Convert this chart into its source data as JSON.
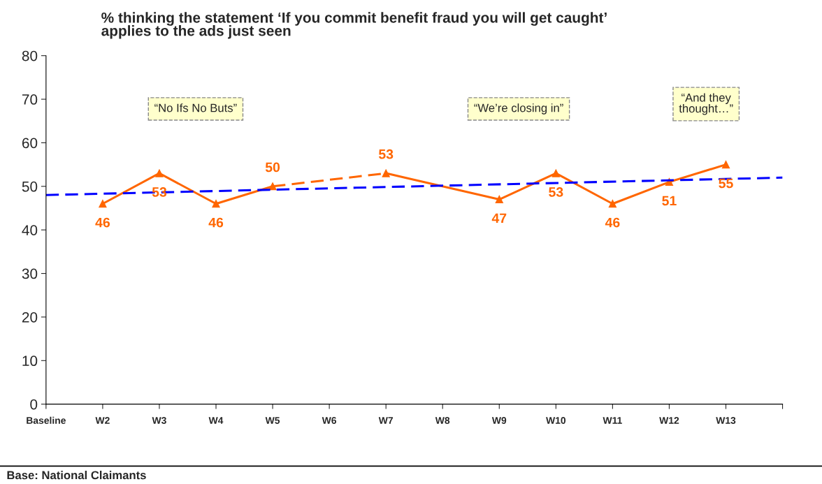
{
  "chart_data": {
    "type": "line",
    "title": "% thinking the statement ‘If you commit benefit fraud you will get caught’\napplies to the ads just seen",
    "categories": [
      "Baseline",
      "W2",
      "W3",
      "W4",
      "W5",
      "W6",
      "W7",
      "W8",
      "W9",
      "W10",
      "W11",
      "W12",
      "W13",
      null
    ],
    "series": [
      {
        "color": "#ff6600",
        "marker": "triangle",
        "line_style": "solid",
        "data_labels": true,
        "values": [
          null,
          46,
          53,
          46,
          50,
          null,
          null,
          null,
          null,
          null,
          null,
          null,
          null,
          null
        ]
      },
      {
        "color": "#ff6600",
        "marker": "none",
        "line_style": "dashed",
        "values": [
          null,
          null,
          null,
          null,
          50,
          null,
          53,
          null,
          null,
          null,
          null,
          null,
          null,
          null
        ]
      },
      {
        "color": "#ff6600",
        "marker": "triangle",
        "line_style": "solid",
        "data_labels": true,
        "values": [
          null,
          null,
          null,
          null,
          null,
          null,
          53,
          null,
          47,
          53,
          46,
          51,
          55,
          null
        ]
      },
      {
        "color": "#0000ff",
        "marker": "none",
        "line_style": "dashed",
        "values": [
          48,
          null,
          null,
          null,
          null,
          null,
          null,
          null,
          null,
          null,
          null,
          null,
          null,
          52
        ]
      }
    ],
    "ylim": [
      0,
      80
    ],
    "yticks": [
      0,
      10,
      20,
      30,
      40,
      50,
      60,
      70,
      80
    ],
    "grid": false,
    "legend": false,
    "annotations": [
      "“No Ifs No Buts”",
      "“We’re closing in”",
      "“And they\nthought…”",
      "Base: National Claimants"
    ]
  }
}
